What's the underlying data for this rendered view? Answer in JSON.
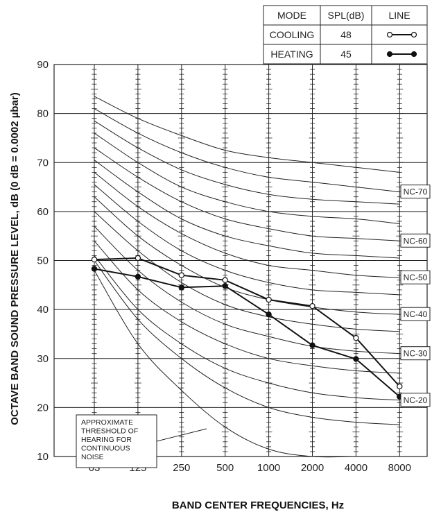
{
  "chart_data": {
    "type": "line",
    "xlabel": "BAND CENTER FREQUENCIES, Hz",
    "ylabel": "OCTAVE BAND SOUND PRESSURE LEVEL, dB (0 dB = 0.0002 µbar)",
    "categories": [
      "63",
      "125",
      "250",
      "500",
      "1000",
      "2000",
      "4000",
      "8000"
    ],
    "ylim": [
      10,
      90
    ],
    "yticks": [
      10,
      20,
      30,
      40,
      50,
      60,
      70,
      80,
      90
    ],
    "grid": true,
    "series": [
      {
        "name": "COOLING",
        "marker": "open-circle",
        "values": [
          50.2,
          50.5,
          47.0,
          46.0,
          42.0,
          40.7,
          34.2,
          24.3
        ]
      },
      {
        "name": "HEATING",
        "marker": "filled-circle",
        "values": [
          48.3,
          46.7,
          44.5,
          44.8,
          39.0,
          32.7,
          29.9,
          22.2
        ]
      }
    ],
    "nc_curves": [
      {
        "label": "",
        "values": [
          83.5,
          79,
          75.5,
          72.5,
          71,
          70,
          69,
          68
        ]
      },
      {
        "label": "NC-70",
        "values": [
          81,
          76,
          72,
          69,
          67,
          66,
          65,
          64
        ]
      },
      {
        "label": "",
        "values": [
          78.5,
          73,
          68.5,
          65.5,
          63.5,
          62.5,
          62,
          61.5
        ]
      },
      {
        "label": "",
        "values": [
          76,
          70,
          65,
          62,
          60,
          59,
          58.5,
          57.5
        ]
      },
      {
        "label": "NC-60",
        "values": [
          73,
          67,
          62,
          58.5,
          56.5,
          55,
          54.5,
          54
        ]
      },
      {
        "label": "",
        "values": [
          70.5,
          64,
          58.5,
          55,
          53,
          51.5,
          51,
          50.5
        ]
      },
      {
        "label": "NC-50",
        "values": [
          68,
          61,
          55.5,
          51.5,
          49,
          48,
          47,
          46.5
        ]
      },
      {
        "label": "",
        "values": [
          65.5,
          58,
          52,
          48,
          45.5,
          44,
          43.5,
          43
        ]
      },
      {
        "label": "NC-40",
        "values": [
          63,
          55,
          49,
          44.5,
          42,
          40.5,
          39.5,
          39
        ]
      },
      {
        "label": "",
        "values": [
          60,
          52,
          45.5,
          41,
          38.5,
          37,
          36,
          35.5
        ]
      },
      {
        "label": "NC-30",
        "values": [
          57,
          48,
          41.5,
          37,
          34.5,
          32.5,
          31.5,
          31
        ]
      },
      {
        "label": "",
        "values": [
          54,
          44,
          37.5,
          33,
          30,
          28.5,
          27.5,
          27
        ]
      },
      {
        "label": "NC-20",
        "values": [
          51,
          40,
          33,
          28,
          25,
          23,
          22,
          21.5
        ]
      },
      {
        "label": "",
        "values": [
          50,
          38,
          30,
          24,
          20,
          18,
          17,
          16.5
        ]
      }
    ],
    "threshold_curve": [
      48,
      33,
      23.5,
      16,
      11.5,
      10,
      9.5,
      10
    ],
    "annotation": "APPROXIMATE THRESHOLD OF HEARING FOR CONTINUOUS NOISE",
    "legend": {
      "headers": [
        "MODE",
        "SPL(dB)",
        "LINE"
      ],
      "rows": [
        {
          "mode": "COOLING",
          "spl": "48",
          "marker": "open-circle"
        },
        {
          "mode": "HEATING",
          "spl": "45",
          "marker": "filled-circle"
        }
      ]
    }
  }
}
